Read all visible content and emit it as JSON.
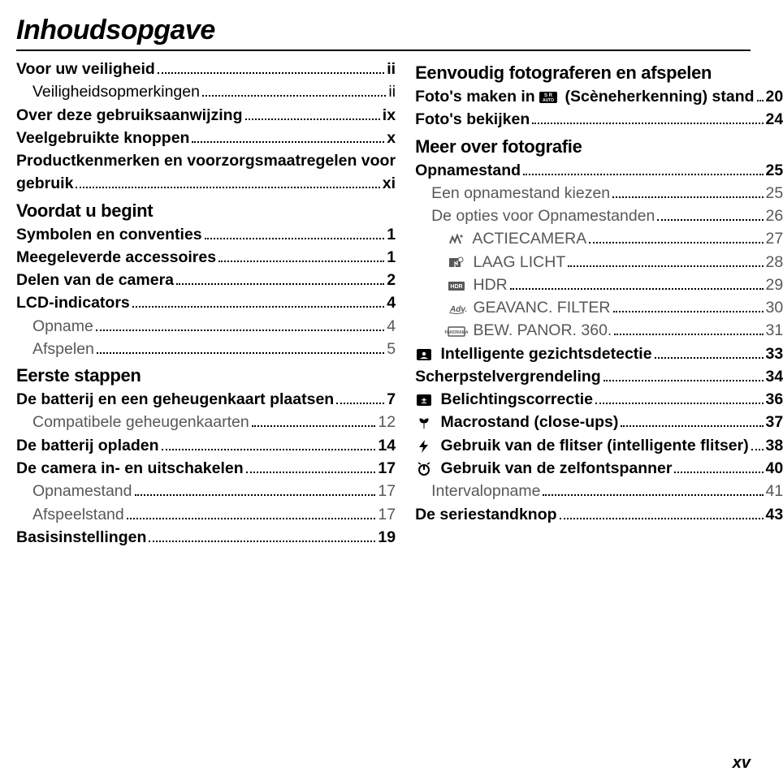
{
  "title": "Inhoudsopgave",
  "page_number": "xv",
  "left": {
    "pre": [
      {
        "label": "Voor uw veiligheid",
        "pg": "ii",
        "bold": true,
        "indent": 0
      },
      {
        "label": "Veiligheidsopmerkingen",
        "pg": "ii",
        "bold": false,
        "indent": 1
      },
      {
        "label": "Over deze gebruiksaanwijzing",
        "pg": "ix",
        "bold": true,
        "indent": 0
      },
      {
        "label": "Veelgebruikte knoppen",
        "pg": "x",
        "bold": true,
        "indent": 0
      }
    ],
    "gebruik": {
      "label": "Productkenmerken en voorzorgsmaatregelen voor gebruik",
      "pg": "xi"
    },
    "s1": {
      "head": "Voordat u begint",
      "items": [
        {
          "label": "Symbolen en conventies",
          "pg": "1",
          "indent": 0
        },
        {
          "label": "Meegeleverde accessoires",
          "pg": "1",
          "indent": 0
        },
        {
          "label": "Delen van de camera",
          "pg": "2",
          "indent": 0
        },
        {
          "label": "LCD-indicators",
          "pg": "4",
          "indent": 0
        },
        {
          "label": "Opname",
          "pg": "4",
          "indent": 1,
          "light": true
        },
        {
          "label": "Afspelen",
          "pg": "5",
          "indent": 1,
          "light": true
        }
      ]
    },
    "s2": {
      "head": "Eerste stappen",
      "items": [
        {
          "label": "De batterij en een geheugenkaart plaatsen",
          "pg": "7",
          "indent": 0
        },
        {
          "label": "Compatibele geheugenkaarten",
          "pg": "12",
          "indent": 1,
          "light": true
        },
        {
          "label": "De batterij opladen",
          "pg": "14",
          "indent": 0
        },
        {
          "label": "De camera in- en uitschakelen",
          "pg": "17",
          "indent": 0
        },
        {
          "label": "Opnamestand",
          "pg": "17",
          "indent": 1,
          "light": true
        },
        {
          "label": "Afspeelstand",
          "pg": "17",
          "indent": 1,
          "light": true
        },
        {
          "label": "Basisinstellingen",
          "pg": "19",
          "indent": 0
        }
      ]
    }
  },
  "right": {
    "s1": {
      "head": "Eenvoudig fotograferen en afspelen",
      "items": [
        {
          "label_pre": "Foto's maken in ",
          "icon": "sr-auto",
          "label_post": " (Scèneherkenning) stand",
          "pg": "20",
          "indent": 0
        },
        {
          "label": "Foto's bekijken",
          "pg": "24",
          "indent": 0
        }
      ]
    },
    "s2": {
      "head": "Meer over fotografie",
      "items": [
        {
          "label": "Opnamestand",
          "pg": "25",
          "indent": 0
        },
        {
          "label": "Een opnamestand kiezen",
          "pg": "25",
          "indent": 1,
          "light": true
        },
        {
          "label": "De opties voor Opnamestanden",
          "pg": "26",
          "indent": 1,
          "light": true
        },
        {
          "icon": "action",
          "label": " ACTIECAMERA",
          "pg": "27",
          "indent": 2,
          "light": true
        },
        {
          "icon": "lowlight",
          "label": " LAAG LICHT",
          "pg": "28",
          "indent": 2,
          "light": true
        },
        {
          "icon": "hdr",
          "label": " HDR",
          "pg": "29",
          "indent": 2,
          "light": true
        },
        {
          "icon": "adv",
          "label": " GEAVANC. FILTER",
          "pg": "30",
          "indent": 2,
          "light": true
        },
        {
          "icon": "panorama",
          "label": " BEW. PANOR. 360.",
          "pg": "31",
          "indent": 2,
          "light": true
        },
        {
          "icon": "face",
          "label": " Intelligente gezichtsdetectie",
          "pg": "33",
          "indent": 0
        },
        {
          "label": "Scherpstelvergrendeling",
          "pg": "34",
          "indent": 0
        },
        {
          "icon": "exposure",
          "label": " Belichtingscorrectie",
          "pg": "36",
          "indent": 0
        },
        {
          "icon": "macro",
          "label": " Macrostand (close-ups)",
          "pg": "37",
          "indent": 0
        },
        {
          "icon": "flash",
          "label": " Gebruik van de flitser (intelligente flitser)",
          "pg": "38",
          "indent": 0
        },
        {
          "icon": "timer",
          "label": " Gebruik van de zelfontspanner",
          "pg": "40",
          "indent": 0
        },
        {
          "label": "Intervalopname",
          "pg": "41",
          "indent": 1,
          "light": true
        },
        {
          "label": "De seriestandknop",
          "pg": "43",
          "indent": 0
        }
      ]
    }
  }
}
